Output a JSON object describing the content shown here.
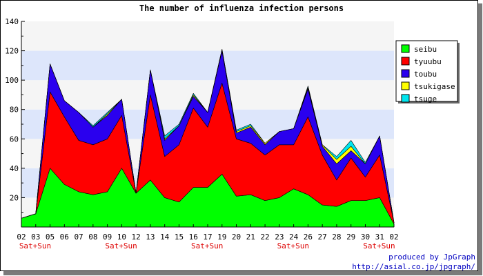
{
  "chart_data": {
    "type": "area",
    "stacked": true,
    "title": "The number of influenza infection persons",
    "categories": [
      "02",
      "03",
      "05",
      "06",
      "07",
      "08",
      "09",
      "10",
      "12",
      "13",
      "14",
      "15",
      "16",
      "17",
      "19",
      "20",
      "21",
      "22",
      "23",
      "24",
      "26",
      "27",
      "28",
      "29",
      "30",
      "31",
      "02"
    ],
    "weekend_labels": [
      "Sat+Sun",
      "",
      "",
      "",
      "",
      "",
      "Sat+Sun",
      "",
      "",
      "",
      "",
      "",
      "Sat+Sun",
      "",
      "",
      "",
      "",
      "",
      "Sat+Sun",
      "",
      "",
      "",
      "",
      "",
      "Sat+Sun",
      "",
      ""
    ],
    "ylim": [
      0,
      140
    ],
    "yticks": [
      20,
      40,
      60,
      80,
      100,
      120,
      140
    ],
    "grid": true,
    "legend_position": "top-right",
    "series": [
      {
        "name": "seibu",
        "color": "#00ff00",
        "values": [
          6,
          9,
          40,
          29,
          24,
          22,
          24,
          40,
          23,
          32,
          20,
          17,
          27,
          27,
          36,
          21,
          22,
          18,
          20,
          26,
          22,
          15,
          14,
          18,
          18,
          20,
          2
        ]
      },
      {
        "name": "tyuubu",
        "color": "#ff0000",
        "values": [
          0,
          0,
          52,
          46,
          35,
          34,
          36,
          36,
          0,
          58,
          28,
          39,
          54,
          41,
          62,
          39,
          35,
          31,
          36,
          30,
          53,
          34,
          18,
          29,
          16,
          29,
          1
        ]
      },
      {
        "name": "toubu",
        "color": "#2a00ee",
        "values": [
          0,
          0,
          19,
          11,
          19,
          12,
          16,
          11,
          0,
          17,
          11,
          13,
          8,
          10,
          22,
          4,
          11,
          7,
          9,
          11,
          19,
          6,
          11,
          5,
          9,
          13,
          0
        ]
      },
      {
        "name": "tsukigase",
        "color": "#ffff00",
        "values": [
          0,
          0,
          0,
          0,
          0,
          0,
          1,
          0,
          0,
          0,
          1,
          0,
          1,
          0,
          1,
          1,
          1,
          1,
          0,
          0,
          1,
          1,
          3,
          3,
          0,
          0,
          0
        ]
      },
      {
        "name": "tsuge",
        "color": "#00e5ee",
        "values": [
          0,
          0,
          0,
          0,
          0,
          1,
          1,
          0,
          0,
          0,
          2,
          1,
          1,
          0,
          0,
          1,
          1,
          0,
          0,
          0,
          1,
          0,
          2,
          4,
          1,
          0,
          0
        ]
      }
    ]
  },
  "credit": {
    "line1": "produced by JpGraph",
    "line2": "http://asial.co.jp/jpgraph/"
  }
}
